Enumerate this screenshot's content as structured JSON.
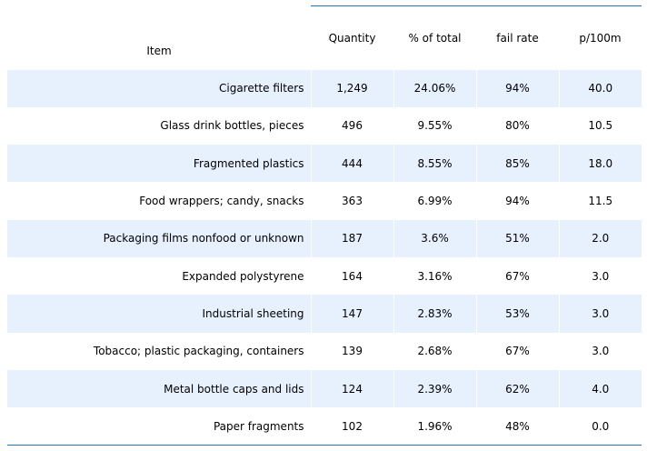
{
  "table": {
    "headers": {
      "item": "Item",
      "quantity": "Quantity",
      "pct_total": "% of total",
      "fail_rate": "fail rate",
      "p100m": "p/100m"
    },
    "rows": [
      {
        "item": "Cigarette filters",
        "quantity": "1,249",
        "pct_total": "24.06%",
        "fail_rate": "94%",
        "p100m": "40.0"
      },
      {
        "item": "Glass drink bottles, pieces",
        "quantity": "496",
        "pct_total": "9.55%",
        "fail_rate": "80%",
        "p100m": "10.5"
      },
      {
        "item": "Fragmented plastics",
        "quantity": "444",
        "pct_total": "8.55%",
        "fail_rate": "85%",
        "p100m": "18.0"
      },
      {
        "item": "Food wrappers; candy, snacks",
        "quantity": "363",
        "pct_total": "6.99%",
        "fail_rate": "94%",
        "p100m": "11.5"
      },
      {
        "item": "Packaging films nonfood or unknown",
        "quantity": "187",
        "pct_total": "3.6%",
        "fail_rate": "51%",
        "p100m": "2.0"
      },
      {
        "item": "Expanded polystyrene",
        "quantity": "164",
        "pct_total": "3.16%",
        "fail_rate": "67%",
        "p100m": "3.0"
      },
      {
        "item": "Industrial sheeting",
        "quantity": "147",
        "pct_total": "2.83%",
        "fail_rate": "53%",
        "p100m": "3.0"
      },
      {
        "item": "Tobacco; plastic packaging, containers",
        "quantity": "139",
        "pct_total": "2.68%",
        "fail_rate": "67%",
        "p100m": "3.0"
      },
      {
        "item": "Metal bottle caps and lids",
        "quantity": "124",
        "pct_total": "2.39%",
        "fail_rate": "62%",
        "p100m": "4.0"
      },
      {
        "item": "Paper fragments",
        "quantity": "102",
        "pct_total": "1.96%",
        "fail_rate": "48%",
        "p100m": "0.0"
      }
    ]
  },
  "colors": {
    "stripe": "#e6f1fd",
    "rule": "#1f77b4"
  }
}
